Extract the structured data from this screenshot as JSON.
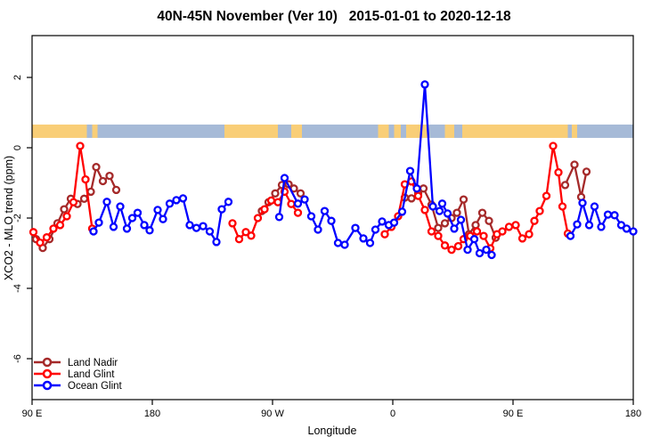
{
  "title": "40N-45N November (Ver 10)   2015-01-01 to 2020-12-18",
  "chart_data": {
    "type": "line",
    "title": "40N-45N November (Ver 10)   2015-01-01 to 2020-12-18",
    "xlabel": "Longitude",
    "ylabel": "XCO2 - MLO trend (ppm)",
    "x_axis": {
      "note": "longitude axis wraps eastward starting at 90E; positions are degrees east of 90E",
      "range": [
        0,
        450
      ],
      "tick_positions": [
        0,
        90,
        180,
        270,
        360,
        450
      ],
      "tick_labels": [
        "90 E",
        "180",
        "90 W",
        "0",
        "90 E",
        "180"
      ]
    },
    "y_axis": {
      "range": [
        -7.2,
        3.2
      ],
      "tick_values": [
        2,
        0,
        -2,
        -4,
        -6
      ],
      "tick_labels": [
        "2",
        "0",
        "-2",
        "-4",
        "-6"
      ],
      "labels_rotated": true
    },
    "grid": "off",
    "map_band": {
      "description": "land/ocean strip for 40N-45N drawn across the plot",
      "value_top": 0.66,
      "value_bottom": 0.28,
      "land_color": "#F9CE77",
      "ocean_color": "#A6BAD7",
      "segments": [
        {
          "from": 0,
          "to": 41,
          "type": "land"
        },
        {
          "from": 41,
          "to": 45,
          "type": "ocean"
        },
        {
          "from": 45,
          "to": 49,
          "type": "land"
        },
        {
          "from": 49,
          "to": 144,
          "type": "ocean"
        },
        {
          "from": 144,
          "to": 184,
          "type": "land"
        },
        {
          "from": 184,
          "to": 194,
          "type": "ocean"
        },
        {
          "from": 194,
          "to": 202,
          "type": "land"
        },
        {
          "from": 202,
          "to": 259,
          "type": "ocean"
        },
        {
          "from": 259,
          "to": 267,
          "type": "land"
        },
        {
          "from": 267,
          "to": 271,
          "type": "ocean"
        },
        {
          "from": 271,
          "to": 276,
          "type": "land"
        },
        {
          "from": 276,
          "to": 280,
          "type": "ocean"
        },
        {
          "from": 280,
          "to": 296,
          "type": "land"
        },
        {
          "from": 296,
          "to": 309,
          "type": "ocean"
        },
        {
          "from": 309,
          "to": 316,
          "type": "land"
        },
        {
          "from": 316,
          "to": 322,
          "type": "ocean"
        },
        {
          "from": 322,
          "to": 401,
          "type": "land"
        },
        {
          "from": 401,
          "to": 404,
          "type": "ocean"
        },
        {
          "from": 404,
          "to": 408,
          "type": "land"
        },
        {
          "from": 408,
          "to": 450,
          "type": "ocean"
        }
      ]
    },
    "legend": {
      "position": "bottom-left",
      "entries": [
        "Land Nadir",
        "Land Glint",
        "Ocean Glint"
      ]
    },
    "series": [
      {
        "name": "Land Nadir",
        "color": "#A52A2A",
        "marker": "open-circle",
        "segments": [
          [
            [
              3,
              -2.6
            ],
            [
              8,
              -2.85
            ],
            [
              13,
              -2.6
            ],
            [
              19,
              -2.15
            ],
            [
              24,
              -1.75
            ],
            [
              29,
              -1.45
            ],
            [
              34,
              -1.6
            ],
            [
              39,
              -1.45
            ],
            [
              44,
              -1.25
            ],
            [
              48,
              -0.55
            ],
            [
              53,
              -0.95
            ],
            [
              58,
              -0.8
            ],
            [
              63,
              -1.2
            ]
          ],
          [
            [
              172,
              -1.8
            ],
            [
              177,
              -1.55
            ],
            [
              182,
              -1.3
            ],
            [
              187,
              -1.06
            ],
            [
              192,
              -1.04
            ],
            [
              196,
              -1.16
            ],
            [
              201,
              -1.3
            ]
          ],
          [
            [
              279,
              -1.42
            ],
            [
              284,
              -1.44
            ],
            [
              289,
              -1.3
            ],
            [
              293,
              -1.16
            ],
            [
              299,
              -1.62
            ],
            [
              304,
              -2.28
            ],
            [
              309,
              -2.15
            ],
            [
              314,
              -2.0
            ],
            [
              318,
              -1.85
            ],
            [
              323,
              -1.47
            ],
            [
              327,
              -2.46
            ],
            [
              332,
              -2.2
            ],
            [
              337,
              -1.85
            ],
            [
              342,
              -2.08
            ],
            [
              347,
              -2.56
            ]
          ],
          [
            [
              399,
              -1.06
            ],
            [
              406,
              -0.48
            ],
            [
              411,
              -1.4
            ],
            [
              415,
              -0.68
            ]
          ]
        ]
      },
      {
        "name": "Land Glint",
        "color": "#FF0000",
        "marker": "open-circle",
        "segments": [
          [
            [
              1,
              -2.4
            ],
            [
              6,
              -2.7
            ],
            [
              11,
              -2.55
            ],
            [
              16,
              -2.3
            ],
            [
              21,
              -2.2
            ],
            [
              26,
              -1.95
            ],
            [
              31,
              -1.55
            ],
            [
              36,
              0.05
            ],
            [
              40,
              -0.9
            ],
            [
              45,
              -2.3
            ]
          ],
          [
            [
              150,
              -2.15
            ],
            [
              155,
              -2.6
            ],
            [
              160,
              -2.4
            ],
            [
              164,
              -2.5
            ],
            [
              169,
              -2.0
            ],
            [
              174,
              -1.75
            ],
            [
              179,
              -1.5
            ],
            [
              184,
              -1.55
            ],
            [
              189,
              -1.25
            ],
            [
              194,
              -1.6
            ],
            [
              199,
              -1.85
            ]
          ],
          [
            [
              264,
              -2.46
            ],
            [
              269,
              -2.25
            ],
            [
              274,
              -1.95
            ],
            [
              279,
              -1.04
            ],
            [
              284,
              -0.96
            ],
            [
              289,
              -1.37
            ],
            [
              294,
              -1.77
            ],
            [
              299,
              -2.38
            ],
            [
              304,
              -2.51
            ],
            [
              309,
              -2.78
            ],
            [
              314,
              -2.9
            ],
            [
              319,
              -2.8
            ],
            [
              323,
              -2.6
            ],
            [
              328,
              -2.51
            ],
            [
              333,
              -2.38
            ],
            [
              338,
              -2.51
            ],
            [
              343,
              -2.86
            ],
            [
              348,
              -2.46
            ],
            [
              352,
              -2.38
            ],
            [
              357,
              -2.25
            ],
            [
              362,
              -2.2
            ],
            [
              367,
              -2.58
            ],
            [
              372,
              -2.46
            ],
            [
              376,
              -2.08
            ],
            [
              380,
              -1.8
            ],
            [
              385,
              -1.37
            ],
            [
              390,
              0.05
            ],
            [
              394,
              -0.7
            ],
            [
              397,
              -1.67
            ],
            [
              401,
              -2.44
            ]
          ]
        ]
      },
      {
        "name": "Ocean Glint",
        "color": "#0000FF",
        "marker": "open-circle",
        "segments": [
          [
            [
              46,
              -2.38
            ],
            [
              50,
              -2.13
            ],
            [
              56,
              -1.54
            ],
            [
              61,
              -2.25
            ],
            [
              66,
              -1.67
            ],
            [
              71,
              -2.3
            ],
            [
              75,
              -2.0
            ],
            [
              79,
              -1.85
            ],
            [
              84,
              -2.2
            ],
            [
              88,
              -2.35
            ],
            [
              94,
              -1.77
            ],
            [
              98,
              -2.03
            ],
            [
              103,
              -1.59
            ],
            [
              108,
              -1.49
            ],
            [
              113,
              -1.44
            ],
            [
              118,
              -2.2
            ],
            [
              123,
              -2.28
            ],
            [
              128,
              -2.23
            ],
            [
              133,
              -2.38
            ],
            [
              138,
              -2.68
            ],
            [
              142,
              -1.75
            ],
            [
              147,
              -1.54
            ]
          ],
          [
            [
              185,
              -1.97
            ],
            [
              189,
              -0.86
            ],
            [
              199,
              -1.59
            ],
            [
              204,
              -1.47
            ],
            [
              209,
              -1.95
            ],
            [
              214,
              -2.33
            ],
            [
              219,
              -1.8
            ],
            [
              224,
              -2.08
            ],
            [
              229,
              -2.71
            ],
            [
              234,
              -2.76
            ],
            [
              242,
              -2.28
            ],
            [
              248,
              -2.58
            ],
            [
              253,
              -2.71
            ],
            [
              257,
              -2.33
            ],
            [
              262,
              -2.1
            ],
            [
              267,
              -2.2
            ],
            [
              271,
              -2.13
            ],
            [
              277,
              -1.82
            ],
            [
              283,
              -0.66
            ],
            [
              288,
              -1.16
            ],
            [
              294,
              1.8
            ],
            [
              300,
              -1.67
            ],
            [
              305,
              -1.8
            ],
            [
              307,
              -1.59
            ],
            [
              311,
              -1.87
            ],
            [
              316,
              -2.3
            ],
            [
              321,
              -2.05
            ],
            [
              326,
              -2.9
            ],
            [
              331,
              -2.6
            ],
            [
              335,
              -3.0
            ],
            [
              340,
              -2.9
            ],
            [
              344,
              -3.05
            ]
          ],
          [
            [
              403,
              -2.51
            ],
            [
              408,
              -2.18
            ],
            [
              412,
              -1.57
            ],
            [
              417,
              -2.2
            ],
            [
              421,
              -1.67
            ],
            [
              426,
              -2.25
            ],
            [
              431,
              -1.9
            ],
            [
              436,
              -1.92
            ],
            [
              441,
              -2.2
            ],
            [
              445,
              -2.3
            ],
            [
              450,
              -2.38
            ]
          ]
        ]
      }
    ]
  }
}
